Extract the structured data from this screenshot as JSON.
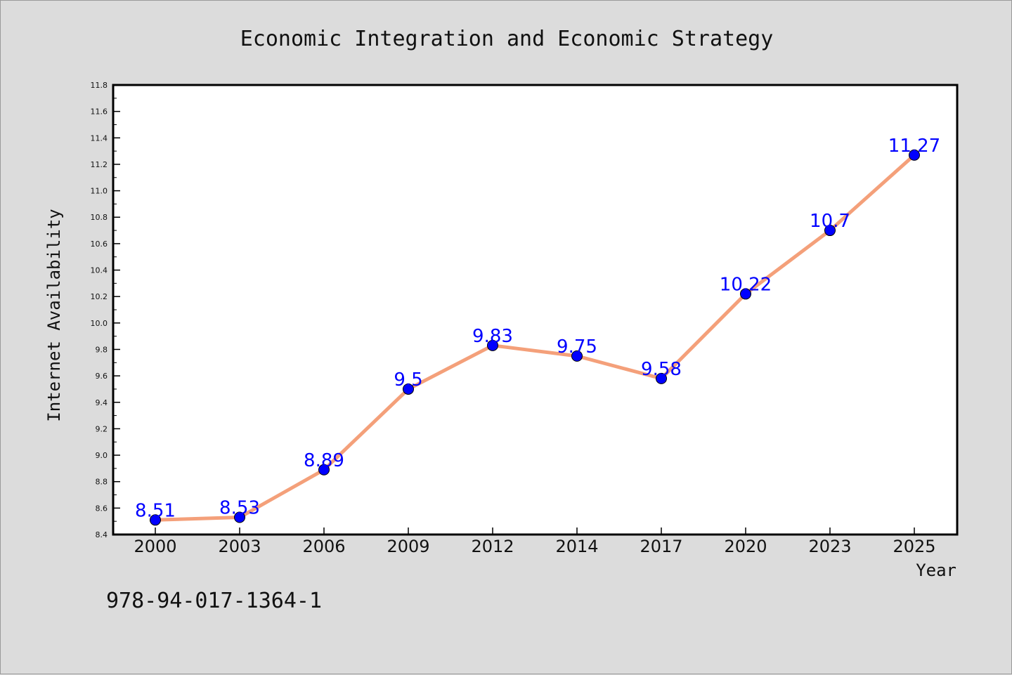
{
  "chart_data": {
    "type": "line",
    "title": "Economic Integration and Economic Strategy",
    "xlabel": "Year",
    "ylabel": "Internet Availability",
    "categories": [
      "2000",
      "2003",
      "2006",
      "2009",
      "2012",
      "2014",
      "2017",
      "2020",
      "2023",
      "2025"
    ],
    "series": [
      {
        "values": [
          8.51,
          8.53,
          8.89,
          9.5,
          9.83,
          9.75,
          9.58,
          10.22,
          10.7,
          11.27
        ],
        "labels": [
          "8.51",
          "8.53",
          "8.89",
          "9.5",
          "9.83",
          "9.75",
          "9.58",
          "10.22",
          "10.7",
          "11.27"
        ],
        "line_color": "#f4a07a",
        "marker_color": "#0000ff"
      }
    ],
    "ylim": [
      8.4,
      11.8
    ],
    "yticks": [
      "8.4",
      "8.6",
      "8.8",
      "9.0",
      "9.2",
      "9.4",
      "9.6",
      "9.8",
      "10.0",
      "10.2",
      "10.4",
      "10.6",
      "10.8",
      "11.0",
      "11.2",
      "11.4",
      "11.6",
      "11.8"
    ],
    "grid": false,
    "legend": "none"
  },
  "footer": {
    "text": "978-94-017-1364-1"
  }
}
